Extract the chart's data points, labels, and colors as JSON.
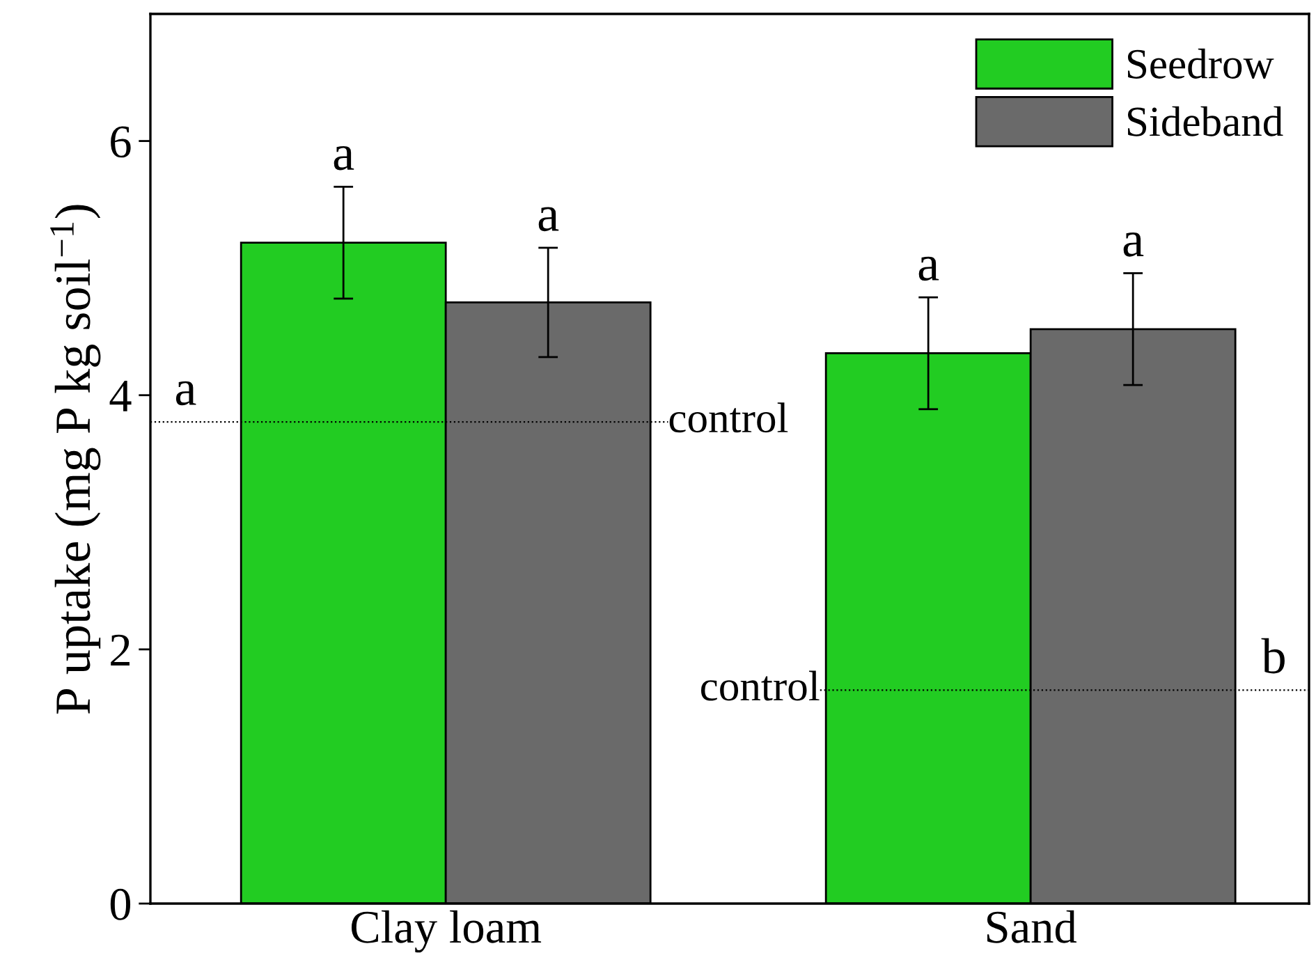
{
  "chart_data": {
    "type": "bar",
    "ylabel": "P uptake (mg P kg soil$^{−1}$)",
    "categories": [
      "Clay loam",
      "Sand"
    ],
    "series": [
      {
        "name": "Seedrow",
        "color": "#22cc22",
        "values": [
          5.2,
          4.33
        ],
        "errors": [
          0.44,
          0.44
        ],
        "value_labels": [
          "a",
          "a"
        ]
      },
      {
        "name": "Sideband",
        "color": "#6a6a6a",
        "values": [
          4.73,
          4.52
        ],
        "errors": [
          0.43,
          0.44
        ],
        "value_labels": [
          "a",
          "a"
        ]
      }
    ],
    "ylim": [
      0,
      7
    ],
    "yticks": [
      0,
      2,
      4,
      6
    ],
    "ref_lines": [
      {
        "axis": "y",
        "value": 3.79,
        "label": "control",
        "color": "#000000",
        "line_style": "dotted"
      },
      {
        "axis": "y",
        "value": 1.68,
        "label": "control",
        "color": "#000000",
        "line_style": "dotted"
      }
    ],
    "annotations": [
      "a",
      "b"
    ],
    "legend": "top right",
    "grid": false
  }
}
